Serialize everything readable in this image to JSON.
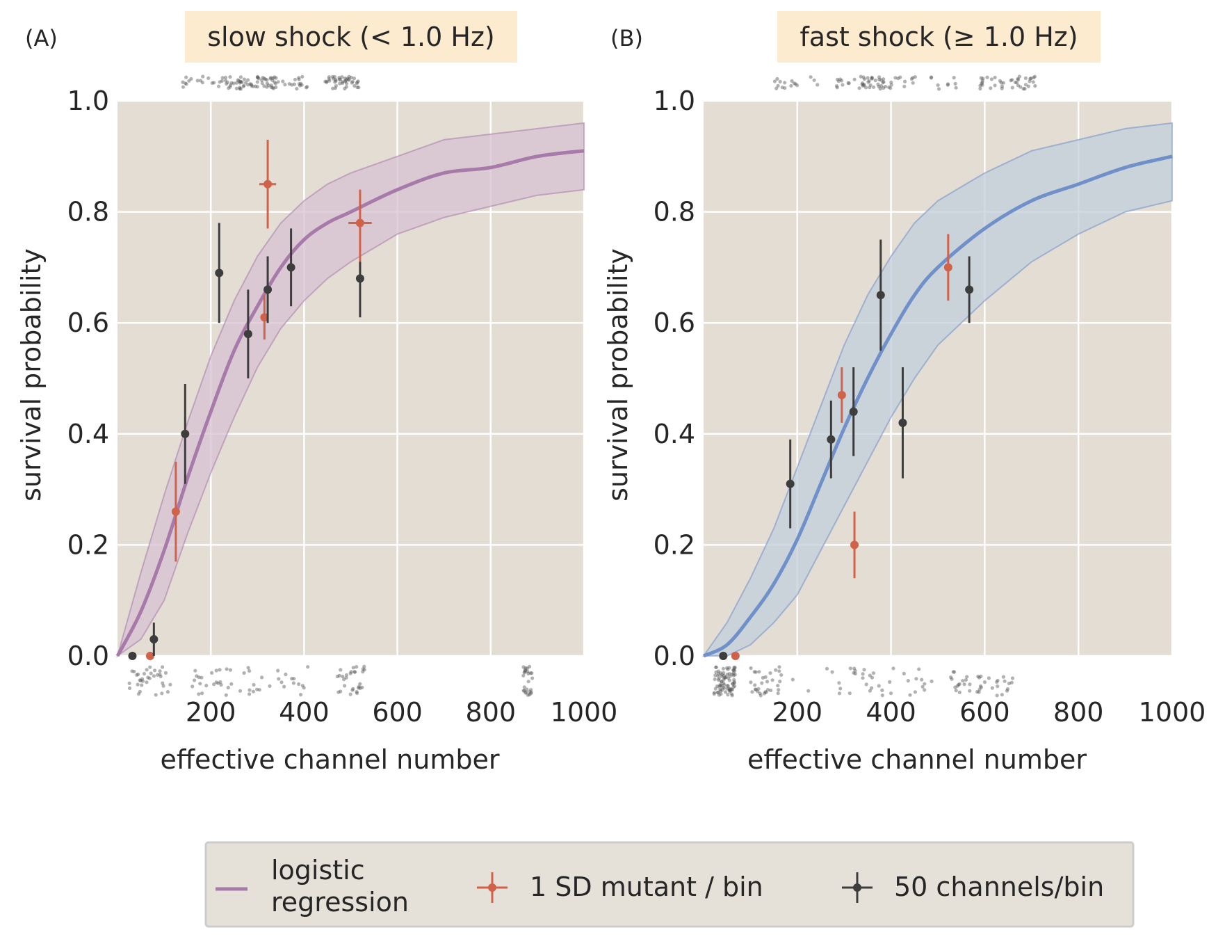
{
  "colors": {
    "plot_bg": "#e3ddd3",
    "grid": "#ffffff",
    "title_bg": "#fdebd0",
    "slow_fit": "#a87aaa",
    "slow_band": "#d7c1d3",
    "fast_fit": "#6f90c8",
    "fast_band": "#c2cddc",
    "mutant": "#d1624a",
    "binned": "#3d3d3d",
    "legend_bg": "#e6e1d8",
    "legend_border": "#cccccc"
  },
  "legend": {
    "fit_label_line1": "logistic",
    "fit_label_line2": "regression",
    "mutant_label": "1 SD mutant / bin",
    "binned_label": "50 channels/bin"
  },
  "chart_data": [
    {
      "type": "scatter",
      "panel_label": "(A)",
      "title": "slow shock (< 1.0 Hz)",
      "xlabel": "effective channel number",
      "ylabel": "survival probability",
      "xlim": [
        0,
        1000
      ],
      "ylim": [
        0,
        1.0
      ],
      "xticks": [
        200,
        400,
        600,
        800,
        1000
      ],
      "yticks": [
        0.0,
        0.2,
        0.4,
        0.6,
        0.8,
        1.0
      ],
      "grid": true,
      "fit": {
        "x": [
          0,
          50,
          100,
          150,
          200,
          250,
          300,
          350,
          400,
          450,
          500,
          600,
          700,
          800,
          900,
          1000
        ],
        "y": [
          0.0,
          0.08,
          0.19,
          0.32,
          0.44,
          0.55,
          0.63,
          0.7,
          0.75,
          0.78,
          0.8,
          0.84,
          0.87,
          0.88,
          0.9,
          0.91
        ],
        "lower": [
          0.0,
          0.03,
          0.1,
          0.22,
          0.33,
          0.43,
          0.52,
          0.59,
          0.64,
          0.68,
          0.71,
          0.76,
          0.79,
          0.81,
          0.83,
          0.84
        ],
        "upper": [
          0.0,
          0.15,
          0.29,
          0.42,
          0.54,
          0.64,
          0.72,
          0.78,
          0.82,
          0.85,
          0.87,
          0.9,
          0.93,
          0.94,
          0.95,
          0.96
        ]
      },
      "mutant_bins": [
        {
          "x": 70,
          "y": 0.0,
          "err_low": 0.0,
          "err_high": 0.0,
          "xerr": 0
        },
        {
          "x": 125,
          "y": 0.26,
          "err_low": 0.09,
          "err_high": 0.09,
          "xerr": 0
        },
        {
          "x": 315,
          "y": 0.61,
          "err_low": 0.04,
          "err_high": 0.04,
          "xerr": 0
        },
        {
          "x": 322,
          "y": 0.85,
          "err_low": 0.08,
          "err_high": 0.08,
          "xerr": 18
        },
        {
          "x": 520,
          "y": 0.78,
          "err_low": 0.09,
          "err_high": 0.06,
          "xerr": 25
        }
      ],
      "binned": [
        {
          "x": 32,
          "y": 0.0,
          "err_low": 0.0,
          "err_high": 0.0
        },
        {
          "x": 78,
          "y": 0.03,
          "err_low": 0.03,
          "err_high": 0.03
        },
        {
          "x": 145,
          "y": 0.4,
          "err_low": 0.09,
          "err_high": 0.09
        },
        {
          "x": 218,
          "y": 0.69,
          "err_low": 0.09,
          "err_high": 0.09
        },
        {
          "x": 280,
          "y": 0.58,
          "err_low": 0.08,
          "err_high": 0.08
        },
        {
          "x": 322,
          "y": 0.66,
          "err_low": 0.06,
          "err_high": 0.06
        },
        {
          "x": 372,
          "y": 0.7,
          "err_low": 0.07,
          "err_high": 0.07
        },
        {
          "x": 520,
          "y": 0.68,
          "err_low": 0.07,
          "err_high": 0.03
        }
      ]
    },
    {
      "type": "scatter",
      "panel_label": "(B)",
      "title": "fast shock (≥ 1.0 Hz)",
      "xlabel": "effective channel number",
      "ylabel": "survival probability",
      "xlim": [
        0,
        1000
      ],
      "ylim": [
        0,
        1.0
      ],
      "xticks": [
        200,
        400,
        600,
        800,
        1000
      ],
      "yticks": [
        0.0,
        0.2,
        0.4,
        0.6,
        0.8,
        1.0
      ],
      "grid": true,
      "fit": {
        "x": [
          0,
          50,
          100,
          150,
          200,
          250,
          300,
          350,
          400,
          450,
          500,
          600,
          700,
          800,
          900,
          1000
        ],
        "y": [
          0.0,
          0.02,
          0.07,
          0.13,
          0.21,
          0.31,
          0.41,
          0.5,
          0.58,
          0.65,
          0.7,
          0.77,
          0.82,
          0.85,
          0.88,
          0.9
        ],
        "lower": [
          0.0,
          0.0,
          0.02,
          0.06,
          0.11,
          0.19,
          0.27,
          0.35,
          0.43,
          0.5,
          0.56,
          0.64,
          0.71,
          0.76,
          0.8,
          0.82
        ],
        "upper": [
          0.0,
          0.06,
          0.14,
          0.23,
          0.34,
          0.45,
          0.56,
          0.65,
          0.72,
          0.78,
          0.82,
          0.87,
          0.91,
          0.93,
          0.95,
          0.96
        ]
      },
      "mutant_bins": [
        {
          "x": 68,
          "y": 0.0,
          "err_low": 0.0,
          "err_high": 0.0,
          "xerr": 0
        },
        {
          "x": 295,
          "y": 0.47,
          "err_low": 0.05,
          "err_high": 0.05,
          "xerr": 0
        },
        {
          "x": 322,
          "y": 0.2,
          "err_low": 0.06,
          "err_high": 0.06,
          "xerr": 0
        },
        {
          "x": 522,
          "y": 0.7,
          "err_low": 0.06,
          "err_high": 0.06,
          "xerr": 8
        }
      ],
      "binned": [
        {
          "x": 42,
          "y": 0.0,
          "err_low": 0.0,
          "err_high": 0.0
        },
        {
          "x": 185,
          "y": 0.31,
          "err_low": 0.08,
          "err_high": 0.08
        },
        {
          "x": 272,
          "y": 0.39,
          "err_low": 0.07,
          "err_high": 0.07
        },
        {
          "x": 320,
          "y": 0.44,
          "err_low": 0.08,
          "err_high": 0.08
        },
        {
          "x": 378,
          "y": 0.65,
          "err_low": 0.1,
          "err_high": 0.1
        },
        {
          "x": 425,
          "y": 0.42,
          "err_low": 0.1,
          "err_high": 0.1
        },
        {
          "x": 567,
          "y": 0.66,
          "err_low": 0.06,
          "err_high": 0.06
        }
      ]
    }
  ]
}
